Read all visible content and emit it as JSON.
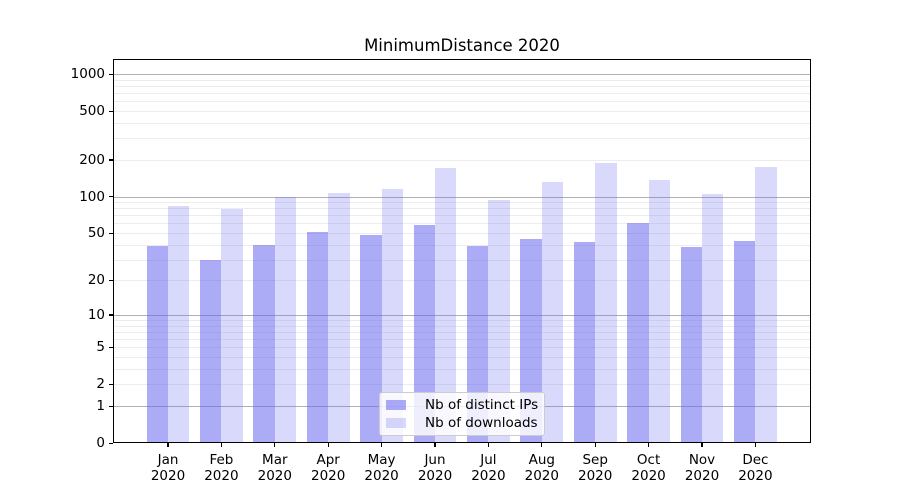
{
  "chart_data": {
    "type": "bar",
    "title": "MinimumDistance 2020",
    "categories": [
      "Jan",
      "Feb",
      "Mar",
      "Apr",
      "May",
      "Jun",
      "Jul",
      "Aug",
      "Sep",
      "Oct",
      "Nov",
      "Dec"
    ],
    "year": "2020",
    "series": [
      {
        "name": "Nb of distinct IPs",
        "values": [
          39,
          30,
          40,
          51,
          48,
          58,
          39,
          45,
          42,
          61,
          38,
          43
        ],
        "color": "rgba(102,102,238,0.55)"
      },
      {
        "name": "Nb of downloads",
        "values": [
          84,
          79,
          100,
          106,
          115,
          171,
          94,
          131,
          187,
          136,
          105,
          175
        ],
        "color": "rgba(102,102,238,0.25)"
      }
    ],
    "yticks": [
      0,
      1,
      2,
      5,
      10,
      20,
      50,
      100,
      200,
      500,
      1000
    ],
    "scale": "log1p",
    "ylim": [
      0,
      1000
    ],
    "grid": true,
    "legend_position": "lower center",
    "colors": {
      "accent": "#6666ee",
      "grid_major": "#b0b0b0",
      "grid_minor": "#ececec",
      "spine": "#000000",
      "legend_border": "#cccccc"
    }
  }
}
